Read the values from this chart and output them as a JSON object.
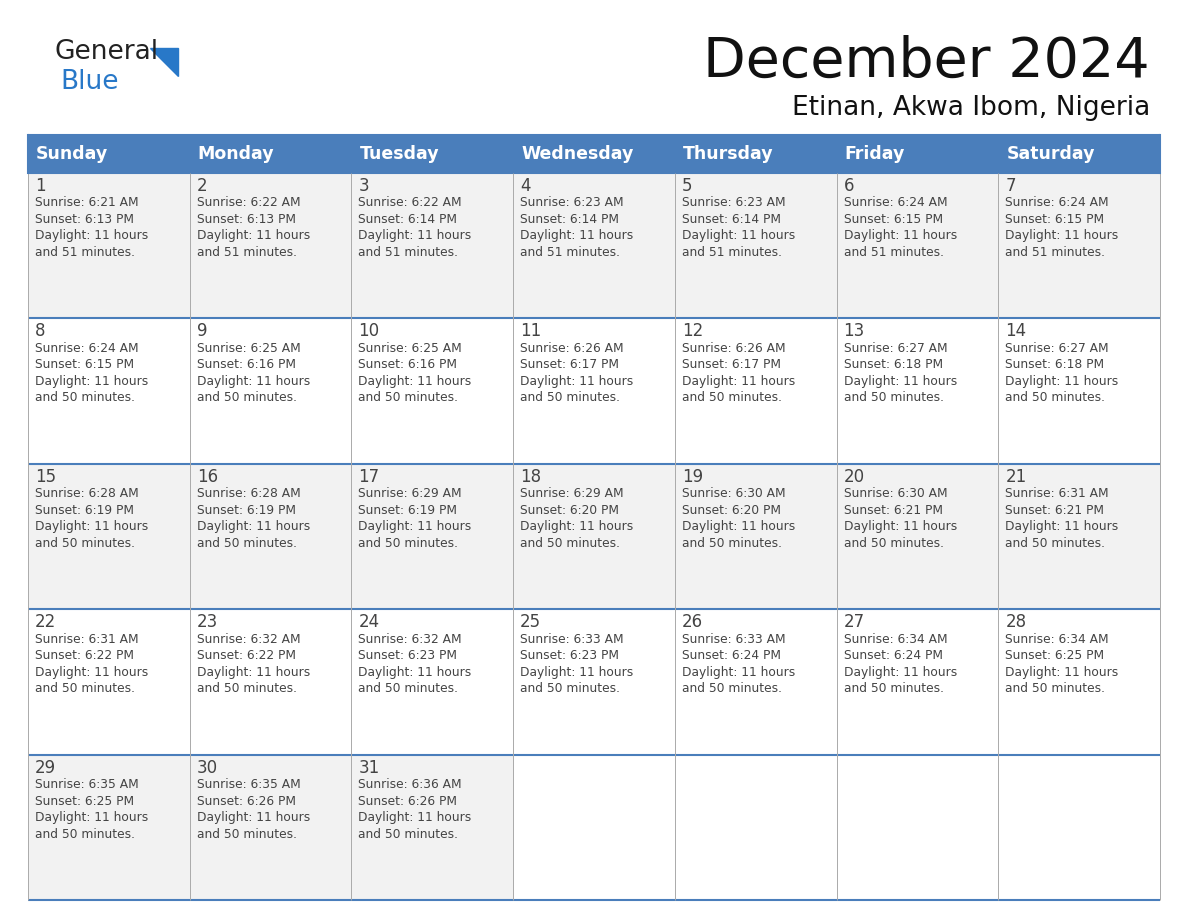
{
  "title": "December 2024",
  "subtitle": "Etinan, Akwa Ibom, Nigeria",
  "header_color": "#4A7EBB",
  "header_text_color": "#FFFFFF",
  "cell_bg_white": "#FFFFFF",
  "cell_bg_gray": "#F2F2F2",
  "border_color": "#4A7EBB",
  "grid_line_color": "#AAAAAA",
  "text_color": "#444444",
  "day_names": [
    "Sunday",
    "Monday",
    "Tuesday",
    "Wednesday",
    "Thursday",
    "Friday",
    "Saturday"
  ],
  "days": [
    {
      "day": 1,
      "col": 0,
      "row": 0,
      "sunrise": "6:21 AM",
      "sunset": "6:13 PM",
      "daylight": "11 hours",
      "daylight2": "and 51 minutes."
    },
    {
      "day": 2,
      "col": 1,
      "row": 0,
      "sunrise": "6:22 AM",
      "sunset": "6:13 PM",
      "daylight": "11 hours",
      "daylight2": "and 51 minutes."
    },
    {
      "day": 3,
      "col": 2,
      "row": 0,
      "sunrise": "6:22 AM",
      "sunset": "6:14 PM",
      "daylight": "11 hours",
      "daylight2": "and 51 minutes."
    },
    {
      "day": 4,
      "col": 3,
      "row": 0,
      "sunrise": "6:23 AM",
      "sunset": "6:14 PM",
      "daylight": "11 hours",
      "daylight2": "and 51 minutes."
    },
    {
      "day": 5,
      "col": 4,
      "row": 0,
      "sunrise": "6:23 AM",
      "sunset": "6:14 PM",
      "daylight": "11 hours",
      "daylight2": "and 51 minutes."
    },
    {
      "day": 6,
      "col": 5,
      "row": 0,
      "sunrise": "6:24 AM",
      "sunset": "6:15 PM",
      "daylight": "11 hours",
      "daylight2": "and 51 minutes."
    },
    {
      "day": 7,
      "col": 6,
      "row": 0,
      "sunrise": "6:24 AM",
      "sunset": "6:15 PM",
      "daylight": "11 hours",
      "daylight2": "and 51 minutes."
    },
    {
      "day": 8,
      "col": 0,
      "row": 1,
      "sunrise": "6:24 AM",
      "sunset": "6:15 PM",
      "daylight": "11 hours",
      "daylight2": "and 50 minutes."
    },
    {
      "day": 9,
      "col": 1,
      "row": 1,
      "sunrise": "6:25 AM",
      "sunset": "6:16 PM",
      "daylight": "11 hours",
      "daylight2": "and 50 minutes."
    },
    {
      "day": 10,
      "col": 2,
      "row": 1,
      "sunrise": "6:25 AM",
      "sunset": "6:16 PM",
      "daylight": "11 hours",
      "daylight2": "and 50 minutes."
    },
    {
      "day": 11,
      "col": 3,
      "row": 1,
      "sunrise": "6:26 AM",
      "sunset": "6:17 PM",
      "daylight": "11 hours",
      "daylight2": "and 50 minutes."
    },
    {
      "day": 12,
      "col": 4,
      "row": 1,
      "sunrise": "6:26 AM",
      "sunset": "6:17 PM",
      "daylight": "11 hours",
      "daylight2": "and 50 minutes."
    },
    {
      "day": 13,
      "col": 5,
      "row": 1,
      "sunrise": "6:27 AM",
      "sunset": "6:18 PM",
      "daylight": "11 hours",
      "daylight2": "and 50 minutes."
    },
    {
      "day": 14,
      "col": 6,
      "row": 1,
      "sunrise": "6:27 AM",
      "sunset": "6:18 PM",
      "daylight": "11 hours",
      "daylight2": "and 50 minutes."
    },
    {
      "day": 15,
      "col": 0,
      "row": 2,
      "sunrise": "6:28 AM",
      "sunset": "6:19 PM",
      "daylight": "11 hours",
      "daylight2": "and 50 minutes."
    },
    {
      "day": 16,
      "col": 1,
      "row": 2,
      "sunrise": "6:28 AM",
      "sunset": "6:19 PM",
      "daylight": "11 hours",
      "daylight2": "and 50 minutes."
    },
    {
      "day": 17,
      "col": 2,
      "row": 2,
      "sunrise": "6:29 AM",
      "sunset": "6:19 PM",
      "daylight": "11 hours",
      "daylight2": "and 50 minutes."
    },
    {
      "day": 18,
      "col": 3,
      "row": 2,
      "sunrise": "6:29 AM",
      "sunset": "6:20 PM",
      "daylight": "11 hours",
      "daylight2": "and 50 minutes."
    },
    {
      "day": 19,
      "col": 4,
      "row": 2,
      "sunrise": "6:30 AM",
      "sunset": "6:20 PM",
      "daylight": "11 hours",
      "daylight2": "and 50 minutes."
    },
    {
      "day": 20,
      "col": 5,
      "row": 2,
      "sunrise": "6:30 AM",
      "sunset": "6:21 PM",
      "daylight": "11 hours",
      "daylight2": "and 50 minutes."
    },
    {
      "day": 21,
      "col": 6,
      "row": 2,
      "sunrise": "6:31 AM",
      "sunset": "6:21 PM",
      "daylight": "11 hours",
      "daylight2": "and 50 minutes."
    },
    {
      "day": 22,
      "col": 0,
      "row": 3,
      "sunrise": "6:31 AM",
      "sunset": "6:22 PM",
      "daylight": "11 hours",
      "daylight2": "and 50 minutes."
    },
    {
      "day": 23,
      "col": 1,
      "row": 3,
      "sunrise": "6:32 AM",
      "sunset": "6:22 PM",
      "daylight": "11 hours",
      "daylight2": "and 50 minutes."
    },
    {
      "day": 24,
      "col": 2,
      "row": 3,
      "sunrise": "6:32 AM",
      "sunset": "6:23 PM",
      "daylight": "11 hours",
      "daylight2": "and 50 minutes."
    },
    {
      "day": 25,
      "col": 3,
      "row": 3,
      "sunrise": "6:33 AM",
      "sunset": "6:23 PM",
      "daylight": "11 hours",
      "daylight2": "and 50 minutes."
    },
    {
      "day": 26,
      "col": 4,
      "row": 3,
      "sunrise": "6:33 AM",
      "sunset": "6:24 PM",
      "daylight": "11 hours",
      "daylight2": "and 50 minutes."
    },
    {
      "day": 27,
      "col": 5,
      "row": 3,
      "sunrise": "6:34 AM",
      "sunset": "6:24 PM",
      "daylight": "11 hours",
      "daylight2": "and 50 minutes."
    },
    {
      "day": 28,
      "col": 6,
      "row": 3,
      "sunrise": "6:34 AM",
      "sunset": "6:25 PM",
      "daylight": "11 hours",
      "daylight2": "and 50 minutes."
    },
    {
      "day": 29,
      "col": 0,
      "row": 4,
      "sunrise": "6:35 AM",
      "sunset": "6:25 PM",
      "daylight": "11 hours",
      "daylight2": "and 50 minutes."
    },
    {
      "day": 30,
      "col": 1,
      "row": 4,
      "sunrise": "6:35 AM",
      "sunset": "6:26 PM",
      "daylight": "11 hours",
      "daylight2": "and 50 minutes."
    },
    {
      "day": 31,
      "col": 2,
      "row": 4,
      "sunrise": "6:36 AM",
      "sunset": "6:26 PM",
      "daylight": "11 hours",
      "daylight2": "and 50 minutes."
    }
  ],
  "logo_general_color": "#222222",
  "logo_blue_color": "#2878C8",
  "fig_width": 11.88,
  "fig_height": 9.18,
  "dpi": 100
}
